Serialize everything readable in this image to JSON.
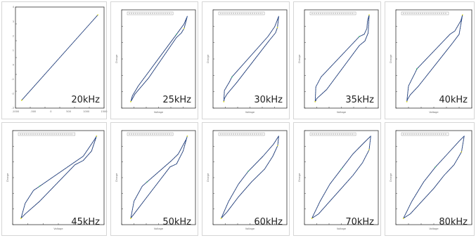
{
  "colors": {
    "trace_dark": "#1a2a5a",
    "trace_mid": "#3f63b8",
    "trace_light": "#46a9e0",
    "trace_yellow": "#d9d932",
    "trace_green": "#45b873",
    "axis": "#333333",
    "frame": "#d6d6d6"
  },
  "chart_data": [
    {
      "type": "line",
      "label": "20kHz",
      "title": "",
      "xlabel": "",
      "ylabel": "",
      "x_ticks": [
        "-1000",
        "-500",
        "0",
        "500",
        "1000",
        "1500"
      ],
      "y_ticks": [
        "-3",
        "-2",
        "-1",
        "0",
        "1",
        "2",
        "3",
        "4"
      ],
      "series": [
        {
          "x": [
            -0.95,
            0.95
          ],
          "y": [
            -0.92,
            0.92
          ]
        }
      ]
    },
    {
      "type": "line",
      "label": "25kHz",
      "title": "",
      "xlabel": "Voltage",
      "ylabel": "Charge",
      "series": [
        {
          "x": [
            -0.85,
            -0.8,
            -0.62,
            0.55,
            0.78,
            0.88,
            0.82,
            0.78,
            0.7,
            0.55,
            -0.3,
            -0.72,
            -0.78,
            -0.85
          ],
          "y": [
            -0.95,
            -0.82,
            -0.6,
            0.55,
            0.78,
            0.95,
            0.78,
            0.68,
            0.58,
            0.48,
            -0.42,
            -0.78,
            -0.86,
            -0.95
          ]
        }
      ]
    },
    {
      "type": "line",
      "label": "30kHz",
      "title": "",
      "xlabel": "Voltage",
      "ylabel": "Charge",
      "series": [
        {
          "x": [
            -0.8,
            -0.78,
            -0.62,
            -0.55,
            0.55,
            0.76,
            0.88,
            0.84,
            0.78,
            0.6,
            -0.4,
            -0.7,
            -0.78,
            -0.8
          ],
          "y": [
            -0.95,
            -0.7,
            -0.5,
            -0.4,
            0.5,
            0.72,
            0.95,
            0.7,
            0.58,
            0.42,
            -0.52,
            -0.78,
            -0.88,
            -0.95
          ]
        }
      ]
    },
    {
      "type": "line",
      "label": "35kHz",
      "title": "",
      "xlabel": "Voltage",
      "ylabel": "Charge",
      "series": [
        {
          "x": [
            -0.8,
            -0.78,
            -0.62,
            0.55,
            0.7,
            0.78,
            0.8,
            0.85,
            0.82,
            0.72,
            0.55,
            -0.45,
            -0.75,
            -0.8
          ],
          "y": [
            -0.95,
            -0.62,
            -0.4,
            0.5,
            0.55,
            0.68,
            0.85,
            0.98,
            0.58,
            0.4,
            0.3,
            -0.68,
            -0.88,
            -0.95
          ]
        }
      ]
    },
    {
      "type": "line",
      "label": "40kHz",
      "title": "",
      "xlabel": "Voltage",
      "ylabel": "Charge",
      "series": [
        {
          "x": [
            -0.8,
            -0.75,
            -0.55,
            -0.5,
            0.48,
            0.62,
            0.8,
            0.85,
            0.75,
            0.55,
            -0.45,
            -0.7,
            -0.78,
            -0.8
          ],
          "y": [
            -0.95,
            -0.6,
            -0.3,
            -0.22,
            0.55,
            0.62,
            0.85,
            0.98,
            0.55,
            0.35,
            -0.6,
            -0.8,
            -0.9,
            -0.95
          ]
        }
      ]
    },
    {
      "type": "line",
      "label": "45kHz",
      "title": "",
      "xlabel": "Voltage",
      "ylabel": "Charge",
      "series": [
        {
          "x": [
            -0.9,
            -0.8,
            -0.6,
            -0.45,
            0.45,
            0.6,
            0.88,
            0.92,
            0.8,
            0.6,
            0.4,
            -0.45,
            -0.8,
            -0.9
          ],
          "y": [
            -0.95,
            -0.6,
            -0.3,
            -0.2,
            0.4,
            0.5,
            0.9,
            0.97,
            0.62,
            0.4,
            0.3,
            -0.55,
            -0.85,
            -0.95
          ]
        }
      ]
    },
    {
      "type": "line",
      "label": "50kHz",
      "title": "",
      "xlabel": "Voltage",
      "ylabel": "Charge",
      "series": [
        {
          "x": [
            -0.85,
            -0.75,
            -0.5,
            -0.35,
            0.4,
            0.6,
            0.85,
            0.88,
            0.75,
            0.55,
            0.35,
            -0.35,
            -0.75,
            -0.85
          ],
          "y": [
            -0.95,
            -0.55,
            -0.2,
            -0.1,
            0.4,
            0.55,
            0.9,
            0.97,
            0.62,
            0.32,
            0.25,
            -0.45,
            -0.85,
            -0.95
          ]
        }
      ]
    },
    {
      "type": "line",
      "label": "60kHz",
      "title": "",
      "xlabel": "Voltage",
      "ylabel": "Charge",
      "series": [
        {
          "x": [
            -0.88,
            -0.65,
            -0.35,
            -0.05,
            0.4,
            0.72,
            0.88,
            0.85,
            0.7,
            0.45,
            0.05,
            -0.35,
            -0.7,
            -0.88
          ],
          "y": [
            -0.95,
            -0.55,
            -0.15,
            0.15,
            0.5,
            0.78,
            0.97,
            0.75,
            0.5,
            0.2,
            -0.1,
            -0.45,
            -0.8,
            -0.95
          ]
        }
      ]
    },
    {
      "type": "line",
      "label": "70kHz",
      "title": "",
      "xlabel": "Voltage",
      "ylabel": "Charge",
      "series": [
        {
          "x": [
            -0.9,
            -0.65,
            -0.35,
            0.0,
            0.35,
            0.7,
            0.9,
            0.85,
            0.65,
            0.35,
            0.0,
            -0.35,
            -0.7,
            -0.9
          ],
          "y": [
            -0.95,
            -0.55,
            -0.15,
            0.2,
            0.55,
            0.82,
            0.97,
            0.65,
            0.35,
            0.05,
            -0.25,
            -0.55,
            -0.85,
            -0.95
          ]
        }
      ]
    },
    {
      "type": "line",
      "label": "80kHz",
      "title": "",
      "xlabel": "Voltage",
      "ylabel": "Charge",
      "series": [
        {
          "x": [
            -0.9,
            -0.65,
            -0.3,
            0.05,
            0.4,
            0.75,
            0.9,
            0.82,
            0.6,
            0.3,
            0.0,
            -0.35,
            -0.7,
            -0.9
          ],
          "y": [
            -0.95,
            -0.55,
            -0.1,
            0.25,
            0.55,
            0.85,
            0.97,
            0.6,
            0.3,
            0.05,
            -0.25,
            -0.55,
            -0.85,
            -0.95
          ]
        }
      ]
    }
  ]
}
